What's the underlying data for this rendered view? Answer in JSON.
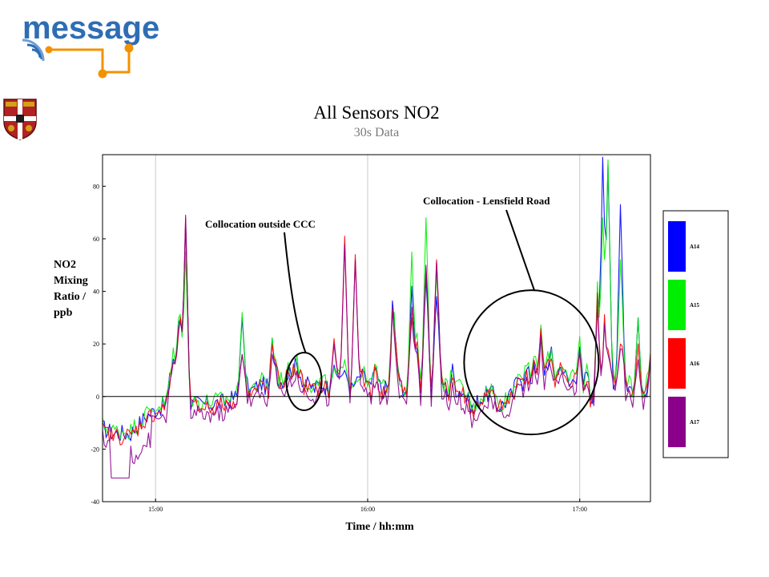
{
  "logo": {
    "text": "message",
    "color": "#2e6db4",
    "accent": "#f39200"
  },
  "crest": {
    "icon": "coat-of-arms-icon"
  },
  "chart_data": {
    "type": "line",
    "title": "All Sensors NO2",
    "subtitle": "30s Data",
    "ylabel_lines": [
      "NO2",
      "Mixing",
      "Ratio /",
      "ppb"
    ],
    "xlabel": "Time / hh:mm",
    "x_unit": "minutes after 14:45",
    "xlim_minutes": [
      0,
      155
    ],
    "ylim": [
      -40,
      92
    ],
    "y_ticks": [
      -40,
      -20,
      0,
      20,
      40,
      60,
      80
    ],
    "y_tick_labels": [
      "-40",
      "-20",
      "0",
      "20",
      "40",
      "60",
      "80"
    ],
    "x_ticks": [
      15,
      75,
      135
    ],
    "x_tick_labels": [
      "15:00",
      "16:00",
      "17:00"
    ],
    "grid": {
      "vertical_at_ticks": true,
      "zero_line": true
    },
    "legend_position": "right",
    "series": [
      {
        "name": "A14",
        "color": "#0000ff"
      },
      {
        "name": "A15",
        "color": "#00ee00"
      },
      {
        "name": "A16",
        "color": "#ff0000"
      },
      {
        "name": "A17",
        "color": "#8b008b"
      }
    ],
    "keypoints": [
      [
        0,
        -12
      ],
      [
        3,
        -14
      ],
      [
        8,
        -14
      ],
      [
        12,
        -8
      ],
      [
        15,
        -5
      ],
      [
        18,
        -3
      ],
      [
        20,
        15
      ],
      [
        21,
        5
      ],
      [
        22,
        30
      ],
      [
        23,
        2
      ],
      [
        25,
        -3
      ],
      [
        30,
        -3
      ],
      [
        35,
        -2
      ],
      [
        38,
        0
      ],
      [
        40,
        5
      ],
      [
        42,
        2
      ],
      [
        45,
        5
      ],
      [
        47,
        3
      ],
      [
        48,
        20
      ],
      [
        50,
        5
      ],
      [
        52,
        8
      ],
      [
        55,
        12
      ],
      [
        57,
        5
      ],
      [
        60,
        3
      ],
      [
        62,
        5
      ],
      [
        65,
        2
      ],
      [
        67,
        8
      ],
      [
        69,
        5
      ],
      [
        71,
        2
      ],
      [
        73,
        8
      ],
      [
        75,
        6
      ],
      [
        76,
        3
      ],
      [
        77,
        10
      ],
      [
        79,
        2
      ],
      [
        81,
        4
      ],
      [
        82,
        35
      ],
      [
        84,
        5
      ],
      [
        86,
        2
      ],
      [
        88,
        10
      ],
      [
        89,
        20
      ],
      [
        90,
        3
      ],
      [
        92,
        14
      ],
      [
        93,
        2
      ],
      [
        95,
        15
      ],
      [
        96,
        5
      ],
      [
        98,
        2
      ],
      [
        99,
        10
      ],
      [
        100,
        3
      ],
      [
        102,
        2
      ],
      [
        104,
        -3
      ],
      [
        105,
        -6
      ],
      [
        106,
        -2
      ],
      [
        108,
        0
      ],
      [
        110,
        2
      ],
      [
        112,
        -4
      ],
      [
        114,
        -2
      ],
      [
        116,
        1
      ],
      [
        118,
        10
      ],
      [
        119,
        5
      ],
      [
        120,
        10
      ],
      [
        121,
        7
      ],
      [
        122,
        15
      ],
      [
        123,
        8
      ],
      [
        124,
        24
      ],
      [
        125,
        10
      ],
      [
        127,
        16
      ],
      [
        128,
        8
      ],
      [
        130,
        12
      ],
      [
        132,
        4
      ],
      [
        134,
        8
      ],
      [
        135,
        20
      ],
      [
        136,
        3
      ],
      [
        137,
        10
      ],
      [
        138,
        0
      ],
      [
        139,
        1
      ],
      [
        140,
        40
      ],
      [
        141,
        5
      ],
      [
        142,
        30
      ],
      [
        143,
        10
      ],
      [
        145,
        5
      ],
      [
        146,
        4
      ],
      [
        147,
        18
      ],
      [
        148,
        5
      ],
      [
        150,
        2
      ],
      [
        152,
        -3
      ],
      [
        154,
        5
      ],
      [
        155,
        15
      ]
    ],
    "spikes": [
      {
        "x": 21.5,
        "values": [
          28,
          30,
          24,
          26
        ]
      },
      {
        "x": 23.5,
        "values": [
          66,
          55,
          68,
          69
        ]
      },
      {
        "x": 39.5,
        "values": [
          30,
          32,
          16,
          16
        ]
      },
      {
        "x": 65.5,
        "values": [
          12,
          11,
          22,
          20
        ]
      },
      {
        "x": 68.5,
        "values": [
          10,
          14,
          61,
          58
        ]
      },
      {
        "x": 71.5,
        "values": [
          5,
          6,
          54,
          52
        ]
      },
      {
        "x": 87.5,
        "values": [
          42,
          55,
          34,
          30
        ]
      },
      {
        "x": 91.5,
        "values": [
          45,
          68,
          49,
          50
        ]
      },
      {
        "x": 94.5,
        "values": [
          38,
          48,
          52,
          51
        ]
      },
      {
        "x": 141.5,
        "values": [
          91,
          68,
          14,
          10
        ]
      },
      {
        "x": 143,
        "values": [
          88,
          90,
          18,
          16
        ]
      },
      {
        "x": 146.5,
        "values": [
          73,
          52,
          20,
          18
        ]
      },
      {
        "x": 151.5,
        "values": [
          30,
          30,
          20,
          14
        ]
      }
    ],
    "series_offsets": [
      0,
      1,
      -1,
      -4
    ],
    "annotations": [
      {
        "text": "Collocation outside CCC",
        "target_minutes": 57,
        "target_value": 10
      },
      {
        "text": "Collocation - Lensfield Road",
        "target_minutes": 122,
        "target_value": 20
      }
    ]
  }
}
